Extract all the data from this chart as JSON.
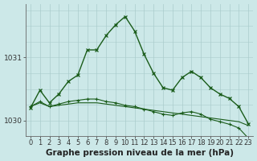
{
  "xlabel": "Graphe pression niveau de la mer (hPa)",
  "background_color": "#cce8e8",
  "grid_color": "#aacccc",
  "line_color": "#1a5c1a",
  "hours": [
    0,
    1,
    2,
    3,
    4,
    5,
    6,
    7,
    8,
    9,
    10,
    11,
    12,
    13,
    14,
    15,
    16,
    17,
    18,
    19,
    20,
    21,
    22,
    23
  ],
  "series1": [
    1030.2,
    1030.48,
    1030.28,
    1030.42,
    1030.62,
    1030.72,
    1031.12,
    1031.12,
    1031.35,
    1031.52,
    1031.65,
    1031.42,
    1031.05,
    1030.75,
    1030.52,
    1030.48,
    1030.68,
    1030.78,
    1030.68,
    1030.52,
    1030.42,
    1030.35,
    1030.22,
    1029.95
  ],
  "series2": [
    1030.22,
    1030.28,
    1030.22,
    1030.24,
    1030.26,
    1030.28,
    1030.28,
    1030.28,
    1030.26,
    1030.24,
    1030.22,
    1030.2,
    1030.18,
    1030.16,
    1030.14,
    1030.12,
    1030.1,
    1030.08,
    1030.06,
    1030.04,
    1030.02,
    1030.0,
    1029.98,
    1029.92
  ],
  "series3": [
    1030.22,
    1030.3,
    1030.22,
    1030.26,
    1030.3,
    1030.32,
    1030.34,
    1030.34,
    1030.3,
    1030.28,
    1030.24,
    1030.22,
    1030.18,
    1030.14,
    1030.1,
    1030.08,
    1030.12,
    1030.14,
    1030.1,
    1030.02,
    1029.98,
    1029.94,
    1029.88,
    1029.72
  ],
  "ylim_min": 1029.75,
  "ylim_max": 1031.85,
  "yticks": [
    1030,
    1031
  ],
  "tick_fontsize": 6,
  "xlabel_fontsize": 7.5
}
